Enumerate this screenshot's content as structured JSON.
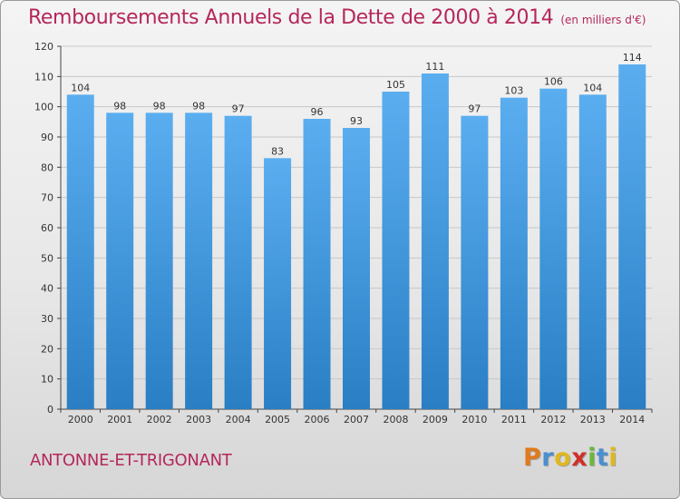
{
  "chart_data": {
    "type": "bar",
    "title": "Remboursements Annuels de la Dette de 2000 à 2014",
    "subtitle": "(en milliers d'€)",
    "categories": [
      "2000",
      "2001",
      "2002",
      "2003",
      "2004",
      "2005",
      "2006",
      "2007",
      "2008",
      "2009",
      "2010",
      "2011",
      "2012",
      "2013",
      "2014"
    ],
    "values": [
      104,
      98,
      98,
      98,
      97,
      83,
      96,
      93,
      105,
      111,
      97,
      103,
      106,
      104,
      114
    ],
    "yticks": [
      0,
      10,
      20,
      30,
      40,
      50,
      60,
      70,
      80,
      90,
      100,
      110,
      120
    ],
    "ylim": [
      0,
      120
    ],
    "xlabel": "",
    "ylabel": "",
    "grid": true,
    "legend": "none",
    "bar_color_top": "#5aaef0",
    "bar_color_bottom": "#2a7ec4"
  },
  "footer": {
    "commune": "ANTONNE-ET-TRIGONANT",
    "logo_letters": [
      {
        "char": "P",
        "color": "#e07a1e"
      },
      {
        "char": "r",
        "color": "#4a8fd0"
      },
      {
        "char": "o",
        "color": "#e0b81e"
      },
      {
        "char": "x",
        "color": "#d0302a"
      },
      {
        "char": "i",
        "color": "#6cb83a"
      },
      {
        "char": "t",
        "color": "#4a8fd0"
      },
      {
        "char": "i",
        "color": "#e0b81e"
      }
    ]
  },
  "colors": {
    "title": "#b5275b",
    "grid": "#c8c8c8",
    "axis": "#444444"
  }
}
